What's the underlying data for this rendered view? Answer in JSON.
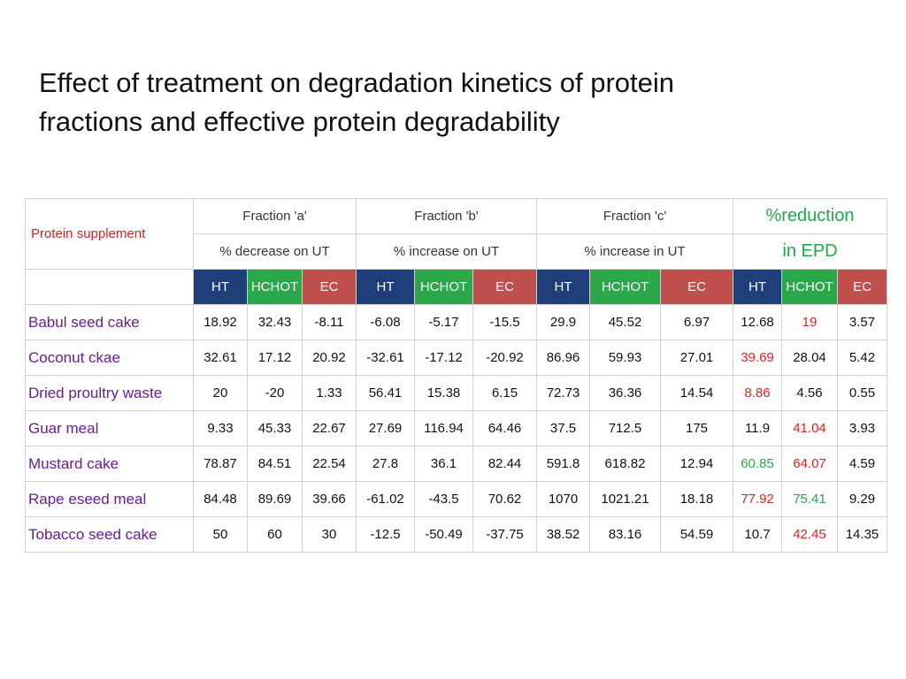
{
  "title": {
    "line1": "Effect of treatment on degradation kinetics of protein",
    "line2": "fractions and effective protein degradability"
  },
  "table": {
    "row_header": "Protein supplement",
    "groups": [
      {
        "name": "Fraction 'a'",
        "sub": "% decrease on UT"
      },
      {
        "name": "Fraction 'b'",
        "sub": "% increase on UT"
      },
      {
        "name": "Fraction 'c'",
        "sub": "% increase in UT"
      },
      {
        "name": "%reduction",
        "sub": "in EPD"
      }
    ],
    "treatments": [
      "HT",
      "HCHOT",
      "EC"
    ],
    "rows": [
      {
        "label": "Babul seed cake",
        "values": [
          "18.92",
          "32.43",
          "-8.11",
          "-6.08",
          "-5.17",
          "-15.5",
          "29.9",
          "45.52",
          "6.97",
          "12.68",
          "19",
          "3.57"
        ]
      },
      {
        "label": "Coconut ckae",
        "values": [
          "32.61",
          "17.12",
          "20.92",
          "-32.61",
          "-17.12",
          "-20.92",
          "86.96",
          "59.93",
          "27.01",
          "39.69",
          "28.04",
          "5.42"
        ]
      },
      {
        "label": "Dried proultry waste",
        "values": [
          "20",
          "-20",
          "1.33",
          "56.41",
          "15.38",
          "6.15",
          "72.73",
          "36.36",
          "14.54",
          "8.86",
          "4.56",
          "0.55"
        ]
      },
      {
        "label": "Guar meal",
        "values": [
          "9.33",
          "45.33",
          "22.67",
          "27.69",
          "116.94",
          "64.46",
          "37.5",
          "712.5",
          "175",
          "11.9",
          "41.04",
          "3.93"
        ]
      },
      {
        "label": "Mustard cake",
        "values": [
          "78.87",
          "84.51",
          "22.54",
          "27.8",
          "36.1",
          "82.44",
          "591.8",
          "618.82",
          "12.94",
          "60.85",
          "64.07",
          "4.59"
        ]
      },
      {
        "label": "Rape eseed meal",
        "values": [
          "84.48",
          "89.69",
          "39.66",
          "-61.02",
          "-43.5",
          "70.62",
          "1070",
          "1021.21",
          "18.18",
          "77.92",
          "75.41",
          "9.29"
        ]
      },
      {
        "label": "Tobacco seed cake",
        "values": [
          "50",
          "60",
          "30",
          "-12.5",
          "-50.49",
          "-37.75",
          "38.52",
          "83.16",
          "54.59",
          "10.7",
          "42.45",
          "14.35"
        ]
      }
    ],
    "highlights": [
      {
        "row": 0,
        "col": 10,
        "color": "red"
      },
      {
        "row": 1,
        "col": 9,
        "color": "red"
      },
      {
        "row": 2,
        "col": 9,
        "color": "red"
      },
      {
        "row": 3,
        "col": 10,
        "color": "red"
      },
      {
        "row": 4,
        "col": 9,
        "color": "green"
      },
      {
        "row": 4,
        "col": 10,
        "color": "red"
      },
      {
        "row": 5,
        "col": 9,
        "color": "red"
      },
      {
        "row": 5,
        "col": 10,
        "color": "green"
      },
      {
        "row": 6,
        "col": 10,
        "color": "red"
      }
    ]
  }
}
